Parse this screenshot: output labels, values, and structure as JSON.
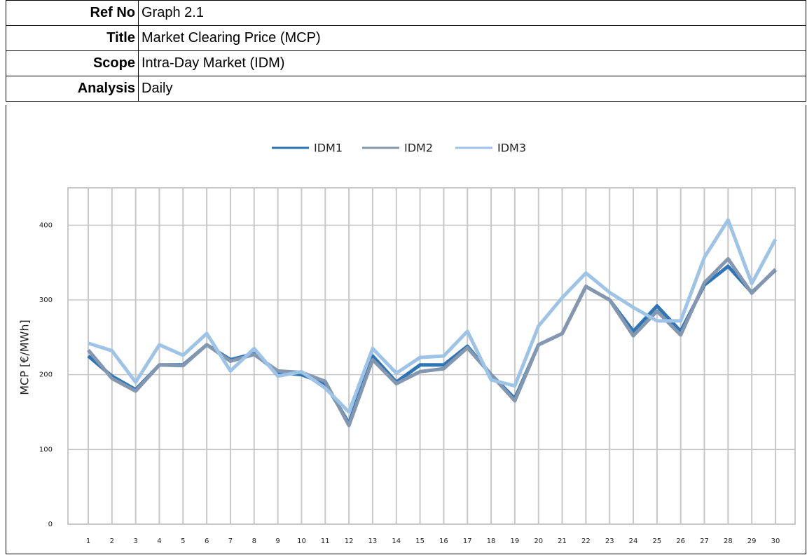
{
  "header": {
    "rows": [
      [
        "Ref No",
        "Graph 2.1"
      ],
      [
        "Title",
        "Market Clearing Price (MCP)"
      ],
      [
        "Scope",
        "Intra-Day Market (IDM)"
      ],
      [
        "Analysis",
        "Daily"
      ]
    ]
  },
  "chart_data": {
    "type": "line",
    "y_label": "MCP [€/MWh]",
    "categories": [
      "1",
      "2",
      "3",
      "4",
      "5",
      "6",
      "7",
      "8",
      "9",
      "10",
      "11",
      "12",
      "13",
      "14",
      "15",
      "16",
      "17",
      "18",
      "19",
      "20",
      "21",
      "22",
      "23",
      "24",
      "25",
      "26",
      "27",
      "28",
      "29",
      "30"
    ],
    "series": [
      {
        "name": "IDM1",
        "color": "#2e75b6",
        "values": [
          225,
          198,
          180,
          213,
          213,
          240,
          220,
          228,
          203,
          200,
          188,
          135,
          225,
          190,
          213,
          213,
          238,
          200,
          168,
          240,
          255,
          318,
          300,
          258,
          292,
          258,
          320,
          345,
          310,
          340
        ]
      },
      {
        "name": "IDM2",
        "color": "#8497b0",
        "values": [
          233,
          195,
          178,
          213,
          212,
          240,
          218,
          227,
          205,
          203,
          191,
          132,
          220,
          188,
          204,
          208,
          236,
          200,
          165,
          240,
          255,
          318,
          300,
          252,
          285,
          253,
          323,
          355,
          309,
          341
        ]
      },
      {
        "name": "IDM3",
        "color": "#9dc3e6",
        "values": [
          242,
          232,
          190,
          240,
          226,
          255,
          205,
          235,
          198,
          204,
          182,
          150,
          235,
          202,
          223,
          225,
          258,
          193,
          185,
          265,
          303,
          336,
          310,
          290,
          272,
          272,
          357,
          407,
          322,
          381
        ]
      }
    ],
    "ylim": [
      0,
      450
    ],
    "yticks": [
      0,
      100,
      200,
      300,
      400
    ],
    "grid": true,
    "legend": "top"
  }
}
